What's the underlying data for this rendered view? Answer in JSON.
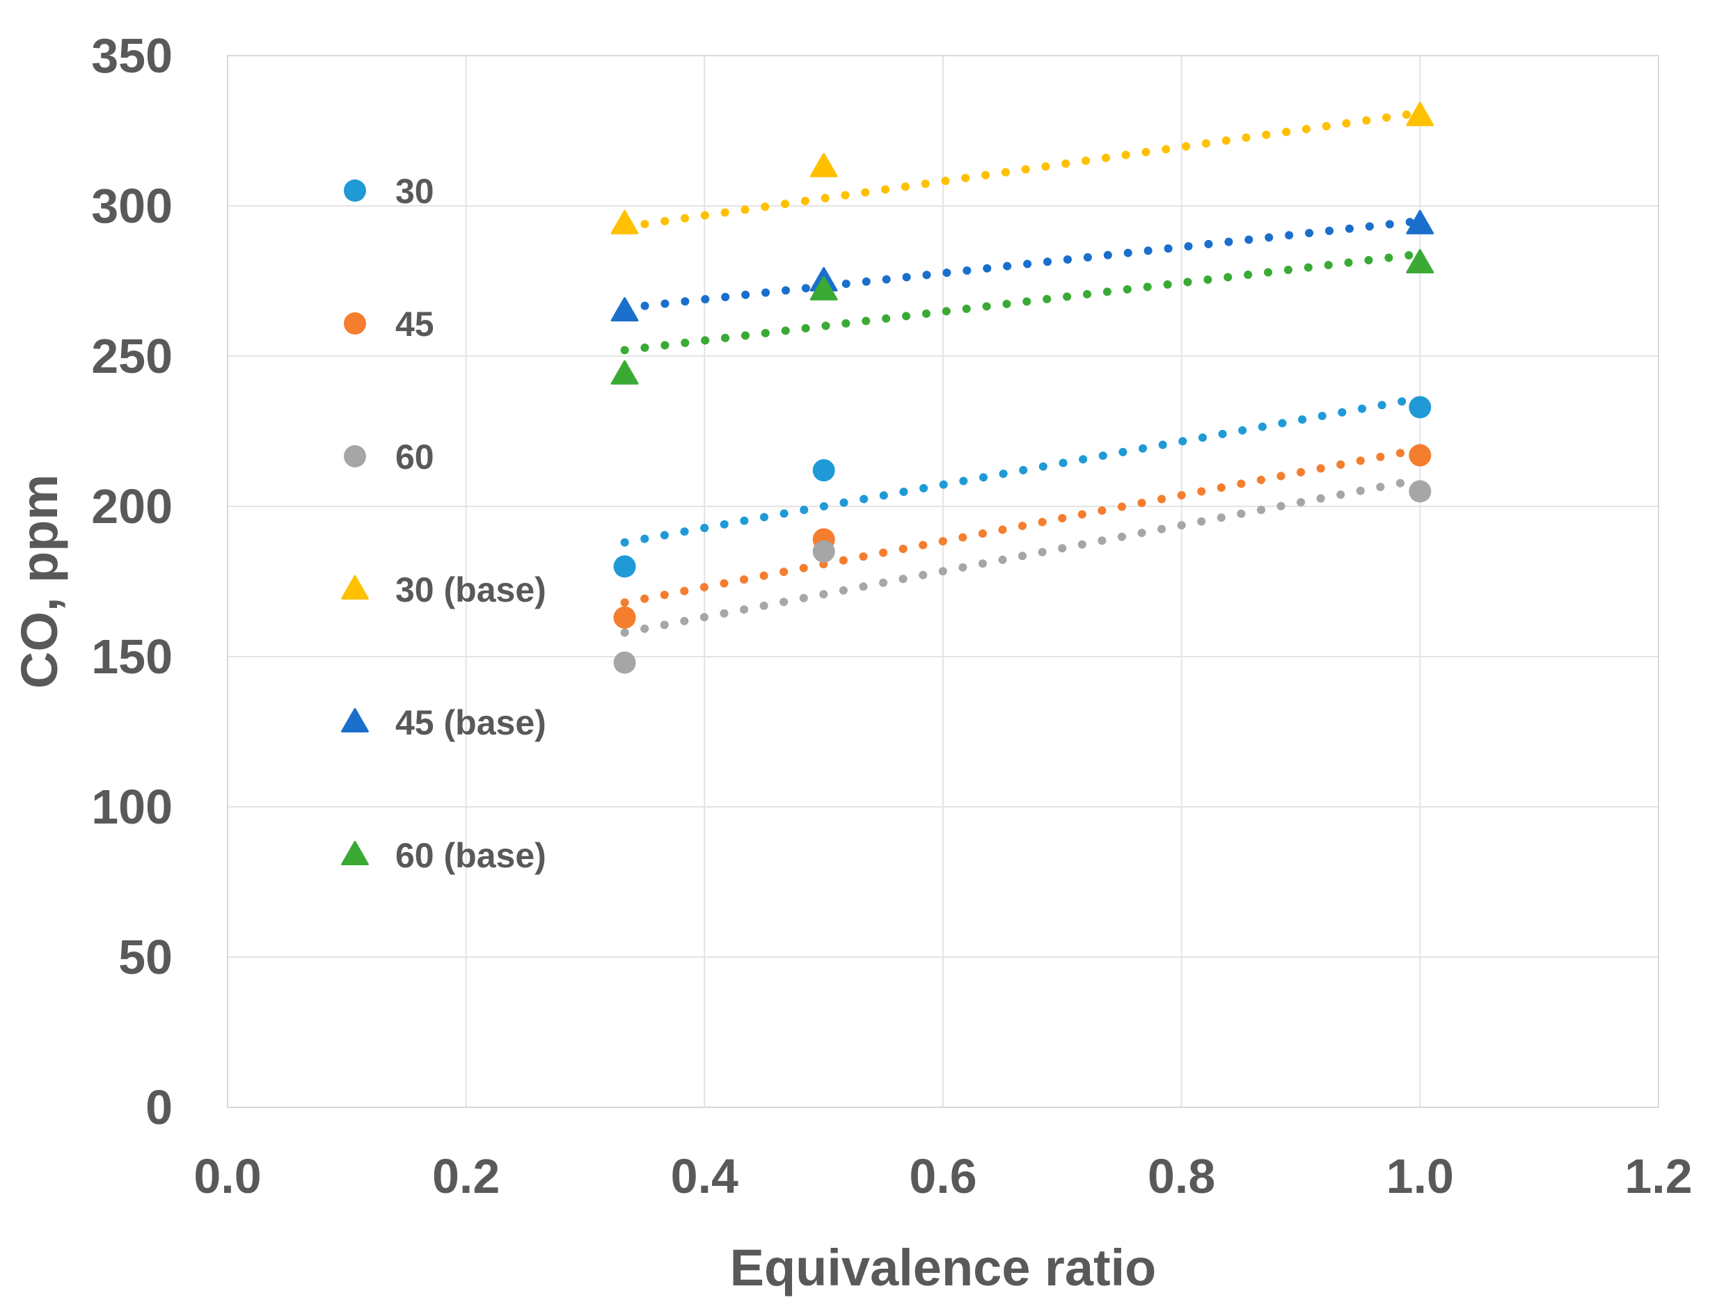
{
  "chart_data": {
    "type": "scatter",
    "title": "",
    "xlabel": "Equivalence ratio",
    "ylabel": "CO, ppm",
    "xlim": [
      0.0,
      1.2
    ],
    "ylim": [
      0,
      350
    ],
    "xticks": [
      0.0,
      0.2,
      0.4,
      0.6,
      0.8,
      1.0,
      1.2
    ],
    "xtick_labels": [
      "0.0",
      "0.2",
      "0.4",
      "0.6",
      "0.8",
      "1.0",
      "1.2"
    ],
    "yticks": [
      0,
      50,
      100,
      150,
      200,
      250,
      300,
      350
    ],
    "ytick_labels": [
      "0",
      "50",
      "100",
      "150",
      "200",
      "250",
      "300",
      "350"
    ],
    "grid": true,
    "legend_position": "left-inside",
    "trendline": "dotted, power/linear fit per series",
    "series": [
      {
        "name": "30",
        "marker": "circle",
        "color": "#1f9ad6",
        "x": [
          0.333,
          0.5,
          1.0
        ],
        "y": [
          180,
          212,
          233
        ],
        "trend": {
          "x": [
            0.333,
            1.0
          ],
          "y": [
            188,
            236
          ]
        }
      },
      {
        "name": "45",
        "marker": "circle",
        "color": "#f47d2e",
        "x": [
          0.333,
          0.5,
          1.0
        ],
        "y": [
          163,
          189,
          217
        ],
        "trend": {
          "x": [
            0.333,
            1.0
          ],
          "y": [
            168,
            219
          ]
        }
      },
      {
        "name": "60",
        "marker": "circle",
        "color": "#a6a6a6",
        "x": [
          0.333,
          0.5,
          1.0
        ],
        "y": [
          148,
          185,
          205
        ],
        "trend": {
          "x": [
            0.333,
            1.0
          ],
          "y": [
            158,
            209
          ]
        }
      },
      {
        "name": "30 (base)",
        "marker": "triangle",
        "color": "#ffc000",
        "x": [
          0.333,
          0.5,
          1.0
        ],
        "y": [
          294,
          313,
          330
        ],
        "trend": {
          "x": [
            0.333,
            1.0
          ],
          "y": [
            293,
            331
          ]
        }
      },
      {
        "name": "45 (base)",
        "marker": "triangle",
        "color": "#1a6fcc",
        "x": [
          0.333,
          0.5,
          1.0
        ],
        "y": [
          265,
          275,
          294
        ],
        "trend": {
          "x": [
            0.333,
            1.0
          ],
          "y": [
            266,
            295
          ]
        }
      },
      {
        "name": "60 (base)",
        "marker": "triangle",
        "color": "#3aaa35",
        "x": [
          0.333,
          0.5,
          1.0
        ],
        "y": [
          244,
          272,
          281
        ],
        "trend": {
          "x": [
            0.333,
            1.0
          ],
          "y": [
            252,
            284
          ]
        }
      }
    ]
  }
}
